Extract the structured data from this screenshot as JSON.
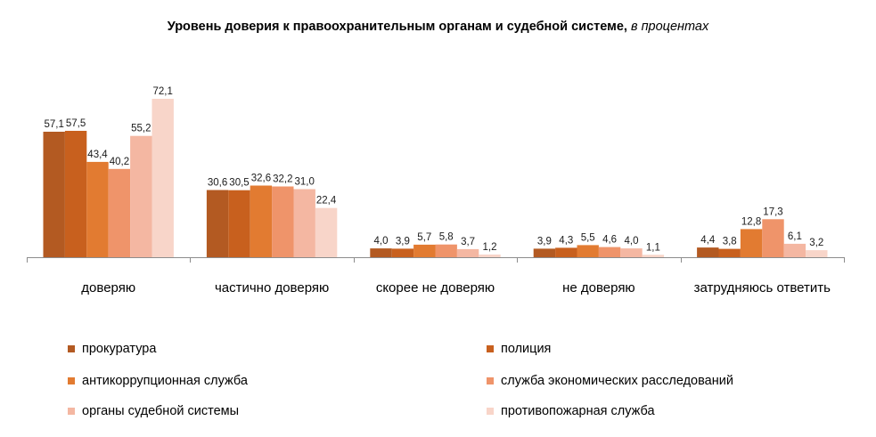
{
  "chart_data": {
    "type": "bar",
    "title": "Уровень доверия к правоохранительным органам и судебной системе,",
    "subtitle": "в процентах",
    "categories": [
      "доверяю",
      "частично доверяю",
      "скорее не доверяю",
      "не доверяю",
      "затрудняюсь ответить"
    ],
    "series": [
      {
        "name": "прокуратура",
        "color": "#b35a22",
        "values": [
          57.1,
          30.6,
          4.0,
          3.9,
          4.4
        ],
        "labels": [
          "57,1",
          "30,6",
          "4,0",
          "3,9",
          "4,4"
        ]
      },
      {
        "name": "полиция",
        "color": "#c8601e",
        "values": [
          57.5,
          30.5,
          3.9,
          4.3,
          3.8
        ],
        "labels": [
          "57,5",
          "30,5",
          "3,9",
          "4,3",
          "3,8"
        ]
      },
      {
        "name": "антикоррупционная служба",
        "color": "#e27b31",
        "values": [
          43.4,
          32.6,
          5.7,
          5.5,
          12.8
        ],
        "labels": [
          "43,4",
          "32,6",
          "5,7",
          "5,5",
          "12,8"
        ]
      },
      {
        "name": "служба экономических расследований",
        "color": "#ef946a",
        "values": [
          40.2,
          32.2,
          5.8,
          4.6,
          17.3
        ],
        "labels": [
          "40,2",
          "32,2",
          "5,8",
          "4,6",
          "17,3"
        ]
      },
      {
        "name": "органы судебной системы",
        "color": "#f4b7a2",
        "values": [
          55.2,
          31.0,
          3.7,
          4.0,
          6.1
        ],
        "labels": [
          "55,2",
          "31,0",
          "3,7",
          "4,0",
          "6,1"
        ]
      },
      {
        "name": "противопожарная служба",
        "color": "#f8d5c9",
        "values": [
          72.1,
          22.4,
          1.2,
          1.1,
          3.2
        ],
        "labels": [
          "72,1",
          "22,4",
          "1,2",
          "1,1",
          "3,2"
        ]
      }
    ],
    "ylim": [
      0,
      80
    ],
    "grid": false,
    "legend": "bottom, two columns"
  }
}
